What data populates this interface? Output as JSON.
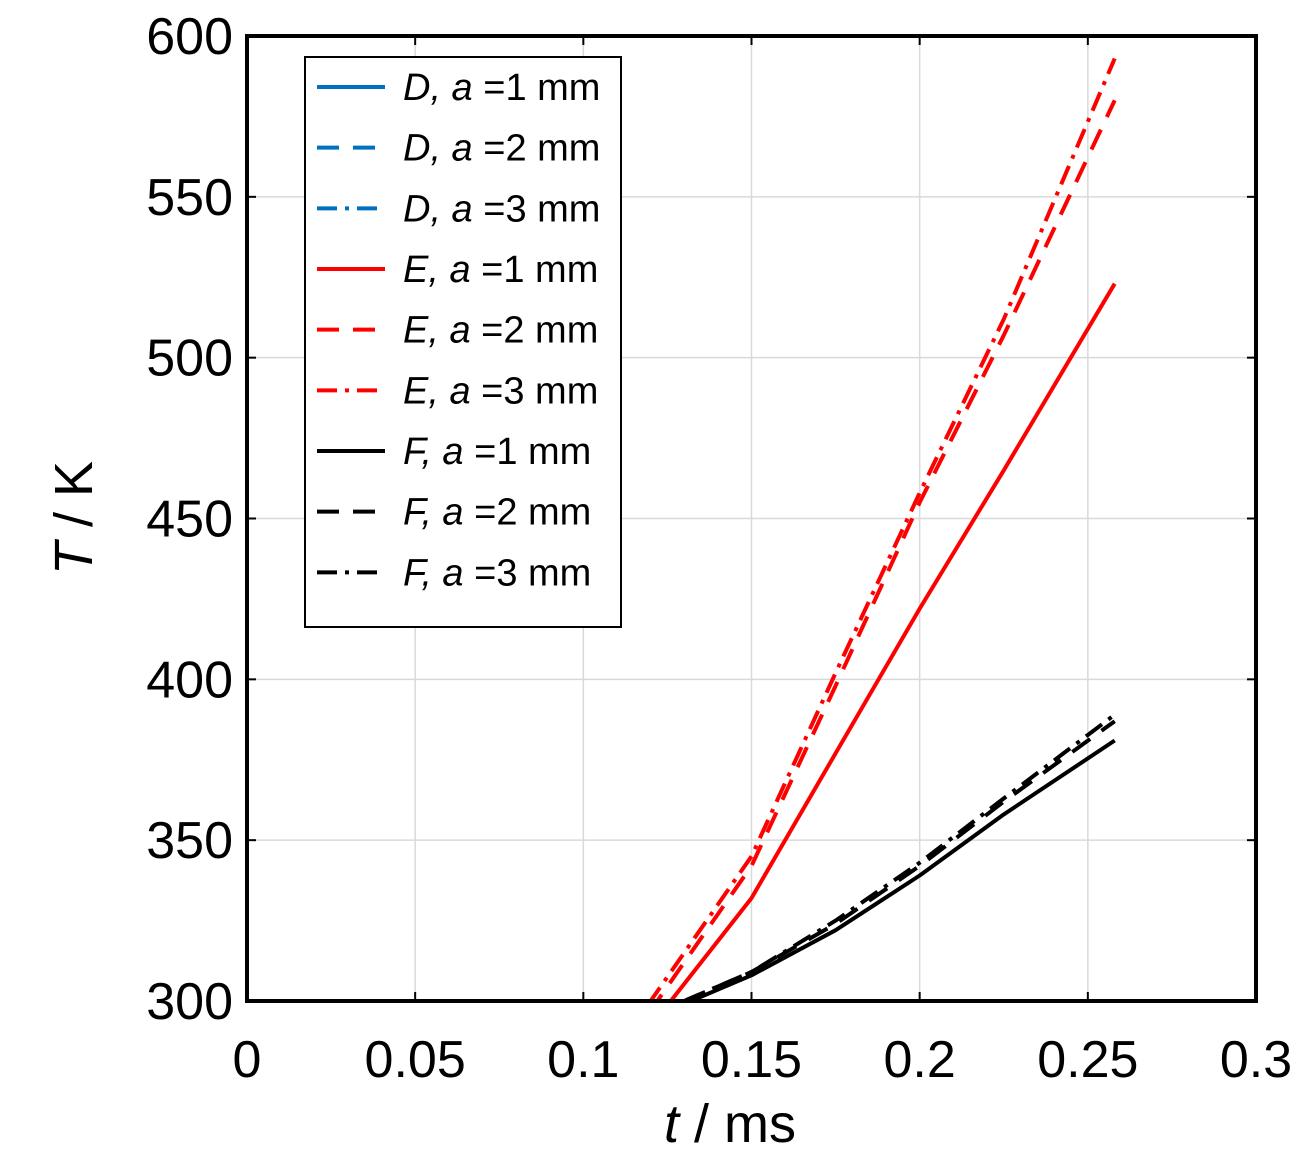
{
  "chart_data": {
    "type": "line",
    "xlabel": {
      "var": "t",
      "unit": " / ms"
    },
    "ylabel": {
      "var": "T",
      "unit": " / K"
    },
    "xlim": [
      0,
      0.3
    ],
    "ylim": [
      300,
      600
    ],
    "xticks": [
      0,
      0.05,
      0.1,
      0.15,
      0.2,
      0.25,
      0.3
    ],
    "yticks": [
      300,
      350,
      400,
      450,
      500,
      550,
      600
    ],
    "xtick_labels": [
      "0",
      "0.05",
      "0.1",
      "0.15",
      "0.2",
      "0.25",
      "0.3"
    ],
    "ytick_labels": [
      "300",
      "350",
      "400",
      "450",
      "500",
      "550",
      "600"
    ],
    "grid": true,
    "legend_position": "top-left",
    "colors": {
      "D": "#0072BD",
      "E": "#FF0000",
      "F": "#000000"
    },
    "series": [
      {
        "name": "D, a =1 mm",
        "label": {
          "letter": "D",
          "rest": "=1 mm"
        },
        "color": "#0072BD",
        "dash": "solid",
        "x": [
          0,
          0.258
        ],
        "y": [
          300,
          300
        ]
      },
      {
        "name": "D, a =2 mm",
        "label": {
          "letter": "D",
          "rest": "=2 mm"
        },
        "color": "#0072BD",
        "dash": "dashed",
        "x": [
          0,
          0.258
        ],
        "y": [
          300,
          300
        ]
      },
      {
        "name": "D, a =3 mm",
        "label": {
          "letter": "D",
          "rest": "=3 mm"
        },
        "color": "#0072BD",
        "dash": "dashdot",
        "x": [
          0,
          0.258
        ],
        "y": [
          300,
          300
        ]
      },
      {
        "name": "E, a =1 mm",
        "label": {
          "letter": "E",
          "rest": "=1 mm"
        },
        "color": "#FF0000",
        "dash": "solid",
        "x": [
          0,
          0.126,
          0.15,
          0.175,
          0.2,
          0.225,
          0.258
        ],
        "y": [
          300,
          300,
          332,
          377,
          422,
          465,
          523
        ]
      },
      {
        "name": "E, a =2 mm",
        "label": {
          "letter": "E",
          "rest": "=2 mm"
        },
        "color": "#FF0000",
        "dash": "dashed",
        "x": [
          0,
          0.122,
          0.15,
          0.175,
          0.2,
          0.225,
          0.258
        ],
        "y": [
          300,
          300,
          342,
          398,
          455,
          507,
          580
        ]
      },
      {
        "name": "E, a =3 mm",
        "label": {
          "letter": "E",
          "rest": "=3 mm"
        },
        "color": "#FF0000",
        "dash": "dashdot",
        "x": [
          0,
          0.12,
          0.15,
          0.175,
          0.2,
          0.225,
          0.258
        ],
        "y": [
          300,
          300,
          345,
          402,
          458,
          512,
          593
        ]
      },
      {
        "name": "F, a =1 mm",
        "label": {
          "letter": "F",
          "rest": "=1 mm"
        },
        "color": "#000000",
        "dash": "solid",
        "x": [
          0,
          0.132,
          0.15,
          0.175,
          0.2,
          0.225,
          0.258
        ],
        "y": [
          300,
          300,
          308,
          322,
          339,
          358,
          381
        ]
      },
      {
        "name": "F, a =2 mm",
        "label": {
          "letter": "F",
          "rest": "=2 mm"
        },
        "color": "#000000",
        "dash": "dashed",
        "x": [
          0,
          0.13,
          0.15,
          0.175,
          0.2,
          0.225,
          0.258
        ],
        "y": [
          300,
          300,
          309,
          324,
          342,
          362,
          387
        ]
      },
      {
        "name": "F, a =3 mm",
        "label": {
          "letter": "F",
          "rest": "=3 mm"
        },
        "color": "#000000",
        "dash": "dashdot",
        "x": [
          0,
          0.13,
          0.15,
          0.175,
          0.2,
          0.225,
          0.258
        ],
        "y": [
          300,
          300,
          309,
          325,
          343,
          363,
          389
        ]
      }
    ]
  }
}
